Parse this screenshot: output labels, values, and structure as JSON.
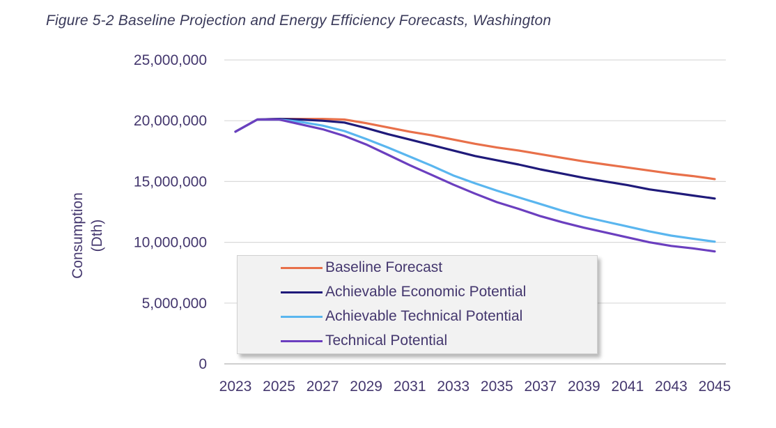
{
  "caption": "Figure 5-2 Baseline Projection and Energy Efficiency Forecasts, Washington",
  "chart_data": {
    "type": "line",
    "title": "Figure 5-2 Baseline Projection and Energy Efficiency Forecasts, Washington",
    "xlabel": "",
    "ylabel_line1": "Consumption",
    "ylabel_line2": "(Dth)",
    "ylim": [
      0,
      25000000
    ],
    "y_ticks": [
      0,
      5000000,
      10000000,
      15000000,
      20000000,
      25000000
    ],
    "y_tick_labels": [
      "0",
      "5,000,000",
      "10,000,000",
      "15,000,000",
      "20,000,000",
      "25,000,000"
    ],
    "x": [
      2023,
      2024,
      2025,
      2026,
      2027,
      2028,
      2029,
      2030,
      2031,
      2032,
      2033,
      2034,
      2035,
      2036,
      2037,
      2038,
      2039,
      2040,
      2041,
      2042,
      2043,
      2044,
      2045
    ],
    "x_tick_labels": [
      "2023",
      "2025",
      "2027",
      "2029",
      "2031",
      "2033",
      "2035",
      "2037",
      "2039",
      "2041",
      "2043",
      "2045"
    ],
    "grid": true,
    "legend_position": "inside-bottom-left",
    "series": [
      {
        "name": "Baseline Forecast",
        "color": "#e8704a",
        "values": [
          19100000,
          20100000,
          20150000,
          20150000,
          20150000,
          20100000,
          19800000,
          19450000,
          19100000,
          18800000,
          18450000,
          18100000,
          17800000,
          17550000,
          17250000,
          16950000,
          16650000,
          16400000,
          16150000,
          15900000,
          15650000,
          15450000,
          15200000
        ]
      },
      {
        "name": "Achievable Economic Potential",
        "color": "#1f1a7a",
        "values": [
          19100000,
          20100000,
          20150000,
          20100000,
          20000000,
          19850000,
          19400000,
          18900000,
          18450000,
          18000000,
          17550000,
          17100000,
          16750000,
          16400000,
          16000000,
          15650000,
          15300000,
          15000000,
          14700000,
          14350000,
          14100000,
          13850000,
          13600000
        ]
      },
      {
        "name": "Achievable Technical Potential",
        "color": "#5ab6ef",
        "values": [
          19100000,
          20100000,
          20100000,
          19900000,
          19600000,
          19150000,
          18500000,
          17800000,
          17050000,
          16300000,
          15500000,
          14850000,
          14250000,
          13700000,
          13150000,
          12600000,
          12100000,
          11700000,
          11300000,
          10900000,
          10550000,
          10300000,
          10050000
        ]
      },
      {
        "name": "Technical Potential",
        "color": "#6b3fbf",
        "values": [
          19100000,
          20100000,
          20100000,
          19700000,
          19300000,
          18750000,
          18050000,
          17200000,
          16350000,
          15550000,
          14750000,
          14000000,
          13300000,
          12750000,
          12150000,
          11650000,
          11200000,
          10800000,
          10400000,
          10000000,
          9700000,
          9500000,
          9250000
        ]
      }
    ]
  }
}
